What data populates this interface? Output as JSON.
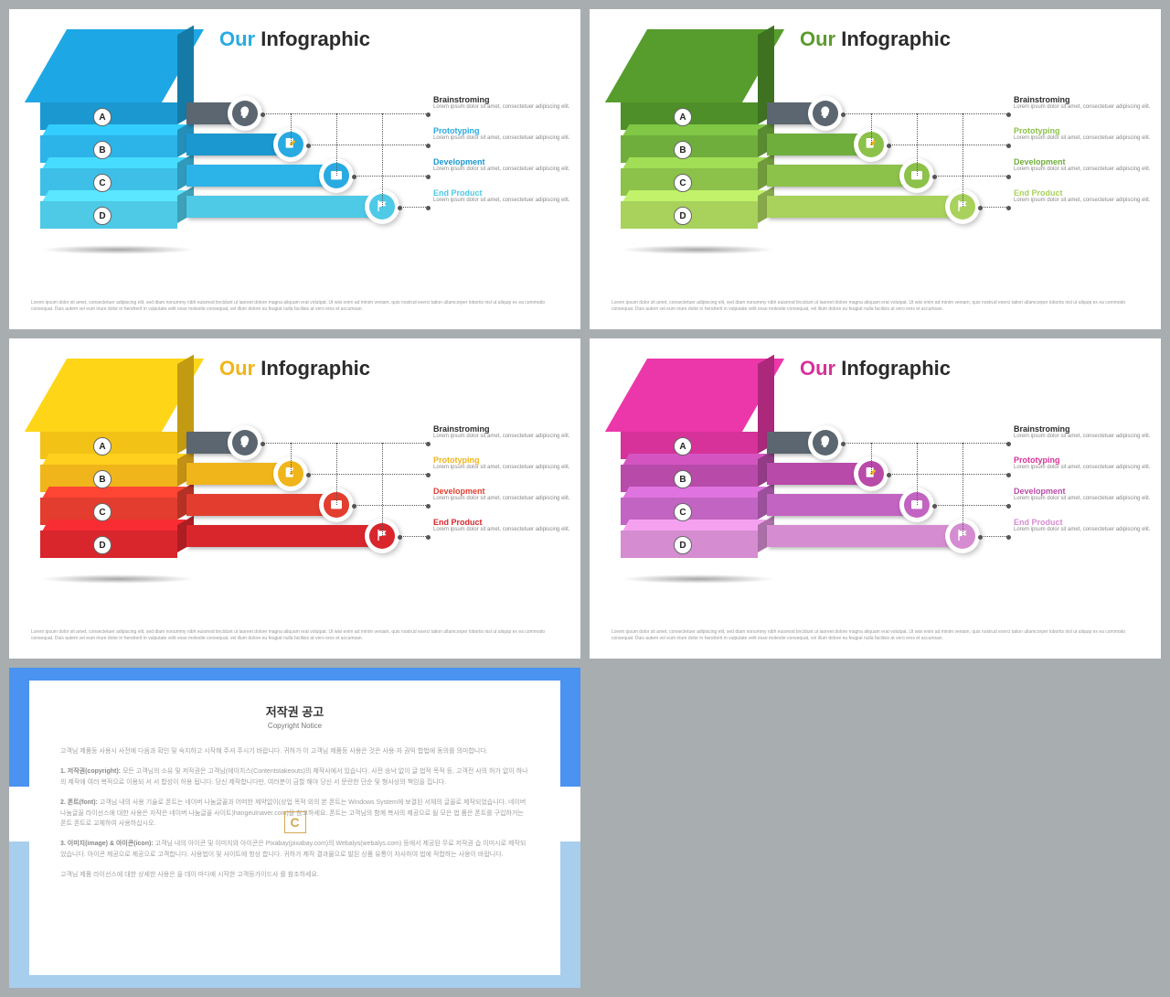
{
  "title_prefix": "Our",
  "title_main": "Infographic",
  "footer_text": "Lorem ipsum dolor sit amet, consectetuer adipiscing elit, sed diam nonummy nibh euismod tincidunt ut laoreet dolore magna aliquam erat volutpat. Ut wisi enim ad minim veniam, quis nostrud exerci tation ullamcorper lobortis nisl ut aliquip ex ea commodo consequat. Duis autem vel eum iriure dolor in hendrerit in vulputate velit esse molestie consequat, vel illum dolore eu feugiat nulla facilisis at vero eros et accumsan.",
  "item_subtext": "Lorem ipsum dolor sit amet, consectetuer adipiscing elit.",
  "layer_letters": [
    "A",
    "B",
    "C",
    "D"
  ],
  "items": [
    {
      "label": "Brainstroming",
      "icon": "head"
    },
    {
      "label": "Prototyping",
      "icon": "edit"
    },
    {
      "label": "Development",
      "icon": "box"
    },
    {
      "label": "End Product",
      "icon": "flag"
    }
  ],
  "variants": [
    {
      "accent": "#29abe2",
      "layers": [
        "#1b98d0",
        "#2cb3e8",
        "#3dbfe8",
        "#4ec9e6"
      ],
      "ribbons": [
        "#5b6670",
        "#1b98d0",
        "#2cb3e8",
        "#4ec9e6"
      ],
      "icon_bg": [
        "#5b6670",
        "#29abe2",
        "#29abe2",
        "#4ec9e6"
      ],
      "label_colors": [
        "#2b2b2b",
        "#29abe2",
        "#1b98d0",
        "#4ec9e6"
      ]
    },
    {
      "accent": "#5c9b2f",
      "layers": [
        "#4e8f29",
        "#6fae3c",
        "#8cc14a",
        "#a8d25c"
      ],
      "ribbons": [
        "#5b6670",
        "#6fae3c",
        "#8cc14a",
        "#a8d25c"
      ],
      "icon_bg": [
        "#5b6670",
        "#8cc14a",
        "#8cc14a",
        "#a8d25c"
      ],
      "label_colors": [
        "#2b2b2b",
        "#8cc14a",
        "#6fae3c",
        "#a8d25c"
      ]
    },
    {
      "accent": "#f0b51a",
      "layers": [
        "#f2c216",
        "#f0b51a",
        "#e23d2e",
        "#d8262c"
      ],
      "ribbons": [
        "#5b6670",
        "#f0b51a",
        "#e23d2e",
        "#d8262c"
      ],
      "icon_bg": [
        "#5b6670",
        "#f0b51a",
        "#e23d2e",
        "#d8262c"
      ],
      "label_colors": [
        "#2b2b2b",
        "#f0b51a",
        "#e23d2e",
        "#d8262c"
      ]
    },
    {
      "accent": "#d6329a",
      "layers": [
        "#d6329a",
        "#b84aa9",
        "#c264c2",
        "#d58cd1"
      ],
      "ribbons": [
        "#5b6670",
        "#b84aa9",
        "#c264c2",
        "#d58cd1"
      ],
      "icon_bg": [
        "#5b6670",
        "#b84aa9",
        "#c264c2",
        "#d58cd1"
      ],
      "label_colors": [
        "#2b2b2b",
        "#d6329a",
        "#b84aa9",
        "#d58cd1"
      ]
    }
  ],
  "copyright": {
    "title": "저작권 공고",
    "subtitle": "Copyright Notice",
    "p1": "고객님 제품등 사용시 사전에 다음과 확인 및 숙지하고 시작해 주셔 주시기 바랍니다. 귀하가 이 고객님 제품등 사용은 것은 사용·자 권익 합법에 동의를 의미합니다.",
    "p2_head": "1. 저작권(copyright):",
    "p2": "모든 고객님의 소유 및 저작권은 고객님(에이치스(Contentstakeouts)의 제작사에서 있습니다. 사전 승낙 없이 글 법적 목적 등, 고객전 사의 허가 없이 하나의 제작에 여러 복적으로 이용되 서 서 합성이 허용 됩니다. 당신 제작합니다만, 여러분이 금할 해야 당신 서 문란한 단순 및 형사상의 책임을 집니다.",
    "p3_head": "2. 폰트(font):",
    "p3": "고객님 내의 사용 기술로 폰트는 네이버 나눔글꼴과 어떠한 제약없이(상업 목적 외의 본 폰트는 Windows System에 보결된 서체의 글꼴로 제작되었습니다. 네이버 나눔글꼴 라이선스에 대한 사용은 자작은 네이버 나눔글꼴 사이트)hangeuInaver.com)을 참고하세요. 폰트는 고객님의 함께 복사의 제공으로 될 모은 법 품은 폰트를 구입하거는 폰트 폰트로 교체하여 사용하십시오.",
    "p4_head": "3. 이미지(image) & 아이콘(icon):",
    "p4": "고객님 내의 아이콘 및 이미지와 아이콘은 Pixabay(pixabay.com)의 Webalys(webalys.com) 등에서 제공된 무료 저작권 습 이미시로 제작되었습니다. 아이콘 제공으로 제공으로 고객합니다. 사용법이 및 사이트에 항상 합니다. 귀하가 제작 결과물으로 발된 상품 유통이 자사하여 법에 적합하는 사용이 바랍니다.",
    "p5": "고객님 제품 라이선스에 대한 상세한 사용은 을 데이 마다에 시작한 고객등가이드사 를 참조하세요."
  }
}
